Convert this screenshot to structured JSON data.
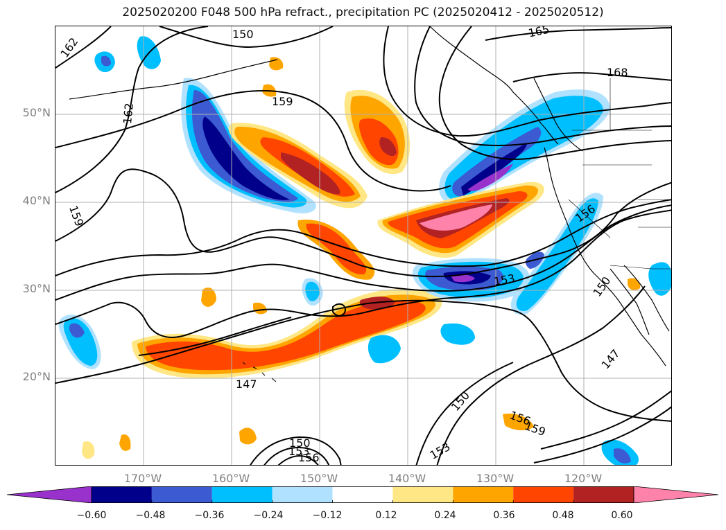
{
  "title": "2025020200 F048 500 hPa refract., precipitation PC (2025020412 - 2025020512)",
  "map": {
    "lat_labels": [
      "50°N",
      "40°N",
      "30°N",
      "20°N"
    ],
    "lon_labels": [
      "170°W",
      "160°W",
      "150°W",
      "140°W",
      "130°W",
      "120°W"
    ],
    "contour_labels": [
      "162",
      "150",
      "165",
      "168",
      "159",
      "162",
      "159",
      "156",
      "153",
      "150",
      "147",
      "147",
      "150",
      "153",
      "156",
      "159",
      "150",
      "153",
      "156"
    ],
    "contour_color": "#000000",
    "grid_color": "#b0b0b0",
    "land_outline_color": "#000000"
  },
  "colorbar": {
    "colors": [
      "#9932cc",
      "#00008b",
      "#3c5ad2",
      "#00bfff",
      "#b0e2ff",
      "#ffffff",
      "#ffe785",
      "#ffa500",
      "#ff4500",
      "#b22222",
      "#ff82ab"
    ],
    "tick_labels": [
      "−0.60",
      "−0.48",
      "−0.36",
      "−0.24",
      "−0.12",
      "0.12",
      "0.24",
      "0.36",
      "0.48",
      "0.60"
    ]
  }
}
